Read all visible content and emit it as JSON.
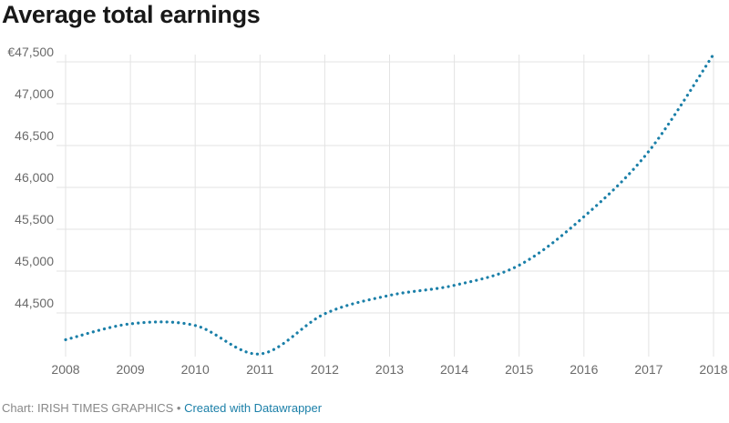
{
  "chart_data": {
    "type": "line",
    "title": "Average total earnings",
    "xlabel": "",
    "ylabel": "",
    "x": [
      "2008",
      "2009",
      "2010",
      "2011",
      "2012",
      "2013",
      "2014",
      "2015",
      "2016",
      "2017",
      "2018"
    ],
    "series": [
      {
        "values": [
          44180,
          44370,
          44350,
          44010,
          44490,
          44710,
          44830,
          45070,
          45650,
          46430,
          47590
        ]
      }
    ],
    "ylim": [
      44000,
      47500
    ],
    "y_ticks": [
      {
        "value": 44500,
        "label": "44,500"
      },
      {
        "value": 45000,
        "label": "45,000"
      },
      {
        "value": 45500,
        "label": "45,500"
      },
      {
        "value": 46000,
        "label": "46,000"
      },
      {
        "value": 46500,
        "label": "46,500"
      },
      {
        "value": 47000,
        "label": "47,000"
      },
      {
        "value": 47500,
        "label": "€47,500"
      }
    ],
    "grid": true,
    "line_style": "dotted",
    "colors": {
      "line": "#1a7fa8",
      "grid": "#e3e3e3",
      "axis_text": "#6a6a6a"
    }
  },
  "footer": {
    "source": "Chart: IRISH TIMES GRAPHICS",
    "separator": " • ",
    "credit": "Created with Datawrapper"
  }
}
